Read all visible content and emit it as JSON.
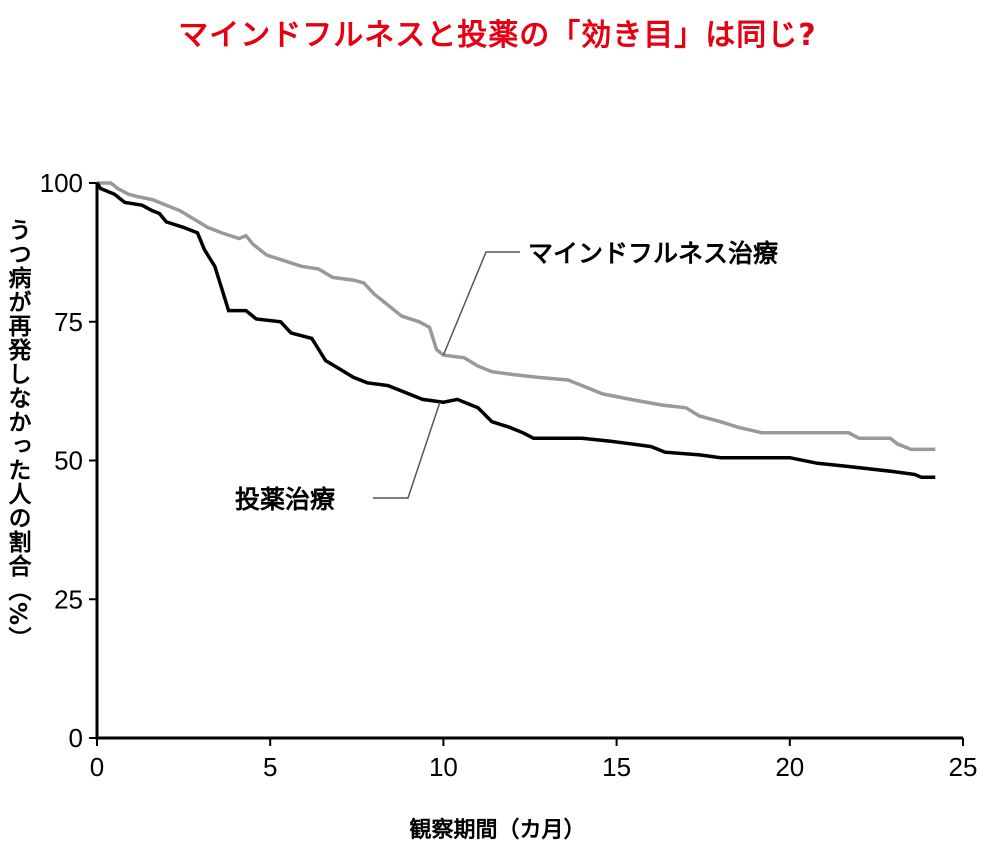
{
  "chart_data": {
    "type": "line",
    "title": "マインドフルネスと投薬の「効き目」は同じ?",
    "xlabel": "観察期間（カ月）",
    "ylabel": "うつ病が再発しなかった人の割合（%）",
    "xlim": [
      0,
      25
    ],
    "ylim": [
      0,
      100
    ],
    "x_ticks": [
      0,
      5,
      10,
      15,
      20,
      25
    ],
    "y_ticks": [
      0,
      25,
      50,
      75,
      100
    ],
    "legend": "callout labels (top-right for mindfulness, lower-left for medication)",
    "grid": false,
    "colors": {
      "mindfulness": "#999999",
      "medication": "#000000",
      "title": "#e60012"
    },
    "series": [
      {
        "name": "マインドフルネス治療",
        "points": [
          [
            0,
            100
          ],
          [
            0.4,
            100
          ],
          [
            0.6,
            99
          ],
          [
            0.9,
            98
          ],
          [
            1.2,
            97.5
          ],
          [
            1.6,
            97
          ],
          [
            2.0,
            96
          ],
          [
            2.4,
            95
          ],
          [
            2.8,
            93.5
          ],
          [
            3.2,
            92
          ],
          [
            3.6,
            91
          ],
          [
            4.1,
            90
          ],
          [
            4.3,
            90.5
          ],
          [
            4.5,
            89
          ],
          [
            4.9,
            87
          ],
          [
            5.4,
            86
          ],
          [
            5.9,
            85
          ],
          [
            6.4,
            84.5
          ],
          [
            6.8,
            83
          ],
          [
            7.4,
            82.5
          ],
          [
            7.7,
            82
          ],
          [
            8.0,
            80
          ],
          [
            8.4,
            78
          ],
          [
            8.8,
            76
          ],
          [
            9.3,
            75
          ],
          [
            9.6,
            74
          ],
          [
            9.8,
            70
          ],
          [
            10.0,
            69
          ],
          [
            10.6,
            68.5
          ],
          [
            11.0,
            67
          ],
          [
            11.4,
            66
          ],
          [
            12.0,
            65.5
          ],
          [
            12.7,
            65
          ],
          [
            13.6,
            64.5
          ],
          [
            14.0,
            63.5
          ],
          [
            14.6,
            62
          ],
          [
            15.4,
            61
          ],
          [
            16.3,
            60
          ],
          [
            17.0,
            59.5
          ],
          [
            17.4,
            58
          ],
          [
            18.0,
            57
          ],
          [
            18.5,
            56
          ],
          [
            19.2,
            55
          ],
          [
            20.5,
            55
          ],
          [
            21.7,
            55
          ],
          [
            22.0,
            54
          ],
          [
            22.9,
            54
          ],
          [
            23.1,
            53
          ],
          [
            23.5,
            52
          ],
          [
            24.2,
            52
          ]
        ]
      },
      {
        "name": "投薬治療",
        "points": [
          [
            0,
            100
          ],
          [
            0.1,
            99
          ],
          [
            0.5,
            98
          ],
          [
            0.8,
            96.5
          ],
          [
            1.3,
            96
          ],
          [
            1.6,
            95
          ],
          [
            1.8,
            94.5
          ],
          [
            2.0,
            93
          ],
          [
            2.5,
            92
          ],
          [
            2.9,
            91
          ],
          [
            3.1,
            88
          ],
          [
            3.4,
            85
          ],
          [
            3.6,
            81
          ],
          [
            3.8,
            77
          ],
          [
            4.3,
            77
          ],
          [
            4.6,
            75.5
          ],
          [
            5.3,
            75
          ],
          [
            5.6,
            73
          ],
          [
            6.2,
            72
          ],
          [
            6.4,
            70
          ],
          [
            6.6,
            68
          ],
          [
            7.0,
            66.5
          ],
          [
            7.4,
            65
          ],
          [
            7.8,
            64
          ],
          [
            8.4,
            63.5
          ],
          [
            9.0,
            62
          ],
          [
            9.4,
            61
          ],
          [
            10.0,
            60.5
          ],
          [
            10.4,
            61
          ],
          [
            11.0,
            59.5
          ],
          [
            11.4,
            57
          ],
          [
            11.9,
            56
          ],
          [
            12.3,
            55
          ],
          [
            12.6,
            54
          ],
          [
            13.4,
            54
          ],
          [
            14.0,
            54
          ],
          [
            14.8,
            53.5
          ],
          [
            15.4,
            53
          ],
          [
            16.0,
            52.5
          ],
          [
            16.4,
            51.5
          ],
          [
            17.4,
            51
          ],
          [
            18.0,
            50.5
          ],
          [
            18.4,
            50.5
          ],
          [
            20.0,
            50.5
          ],
          [
            20.8,
            49.5
          ],
          [
            21.6,
            49
          ],
          [
            23.0,
            48
          ],
          [
            23.6,
            47.5
          ],
          [
            23.8,
            47
          ],
          [
            24.2,
            47
          ]
        ]
      }
    ]
  }
}
